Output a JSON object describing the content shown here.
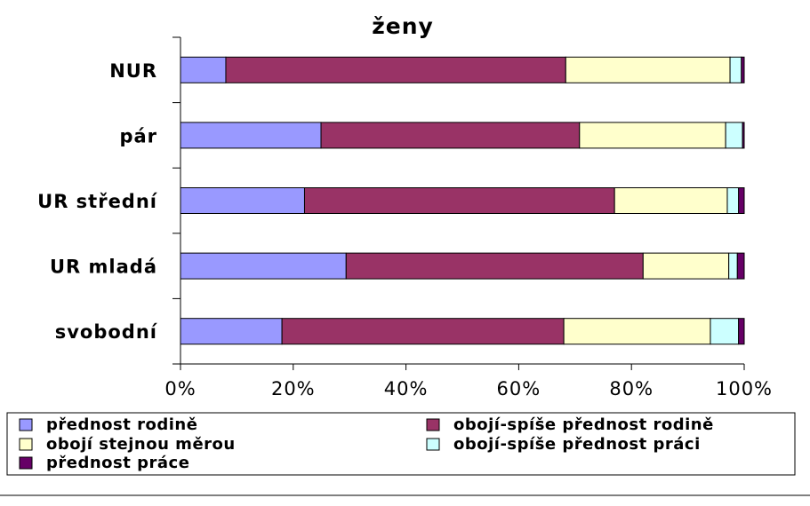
{
  "chart_data": {
    "type": "bar",
    "orientation": "horizontal",
    "stacked": "percent",
    "title": "ženy",
    "categories": [
      "NUR",
      "pár",
      "UR střední",
      "UR mladá",
      "svobodní"
    ],
    "series": [
      {
        "name": "přednost rodině",
        "color": "#9999ff",
        "values": [
          8,
          25,
          22,
          29,
          18
        ]
      },
      {
        "name": "obojí-spíše přednost rodině",
        "color": "#993366",
        "values": [
          60,
          46,
          55,
          52,
          50
        ]
      },
      {
        "name": "obojí stejnou měrou",
        "color": "#ffffcc",
        "values": [
          29,
          26,
          20,
          15,
          26
        ]
      },
      {
        "name": "obojí-spíše přednost práci",
        "color": "#ccffff",
        "values": [
          2,
          3,
          2,
          1.5,
          5
        ]
      },
      {
        "name": "přednost práce",
        "color": "#660066",
        "values": [
          0.5,
          0.3,
          1,
          1.2,
          1
        ]
      }
    ],
    "xlim": [
      0,
      100
    ],
    "x_ticks": [
      "0%",
      "20%",
      "40%",
      "60%",
      "80%",
      "100%"
    ],
    "legend_position": "bottom",
    "grid": false
  }
}
